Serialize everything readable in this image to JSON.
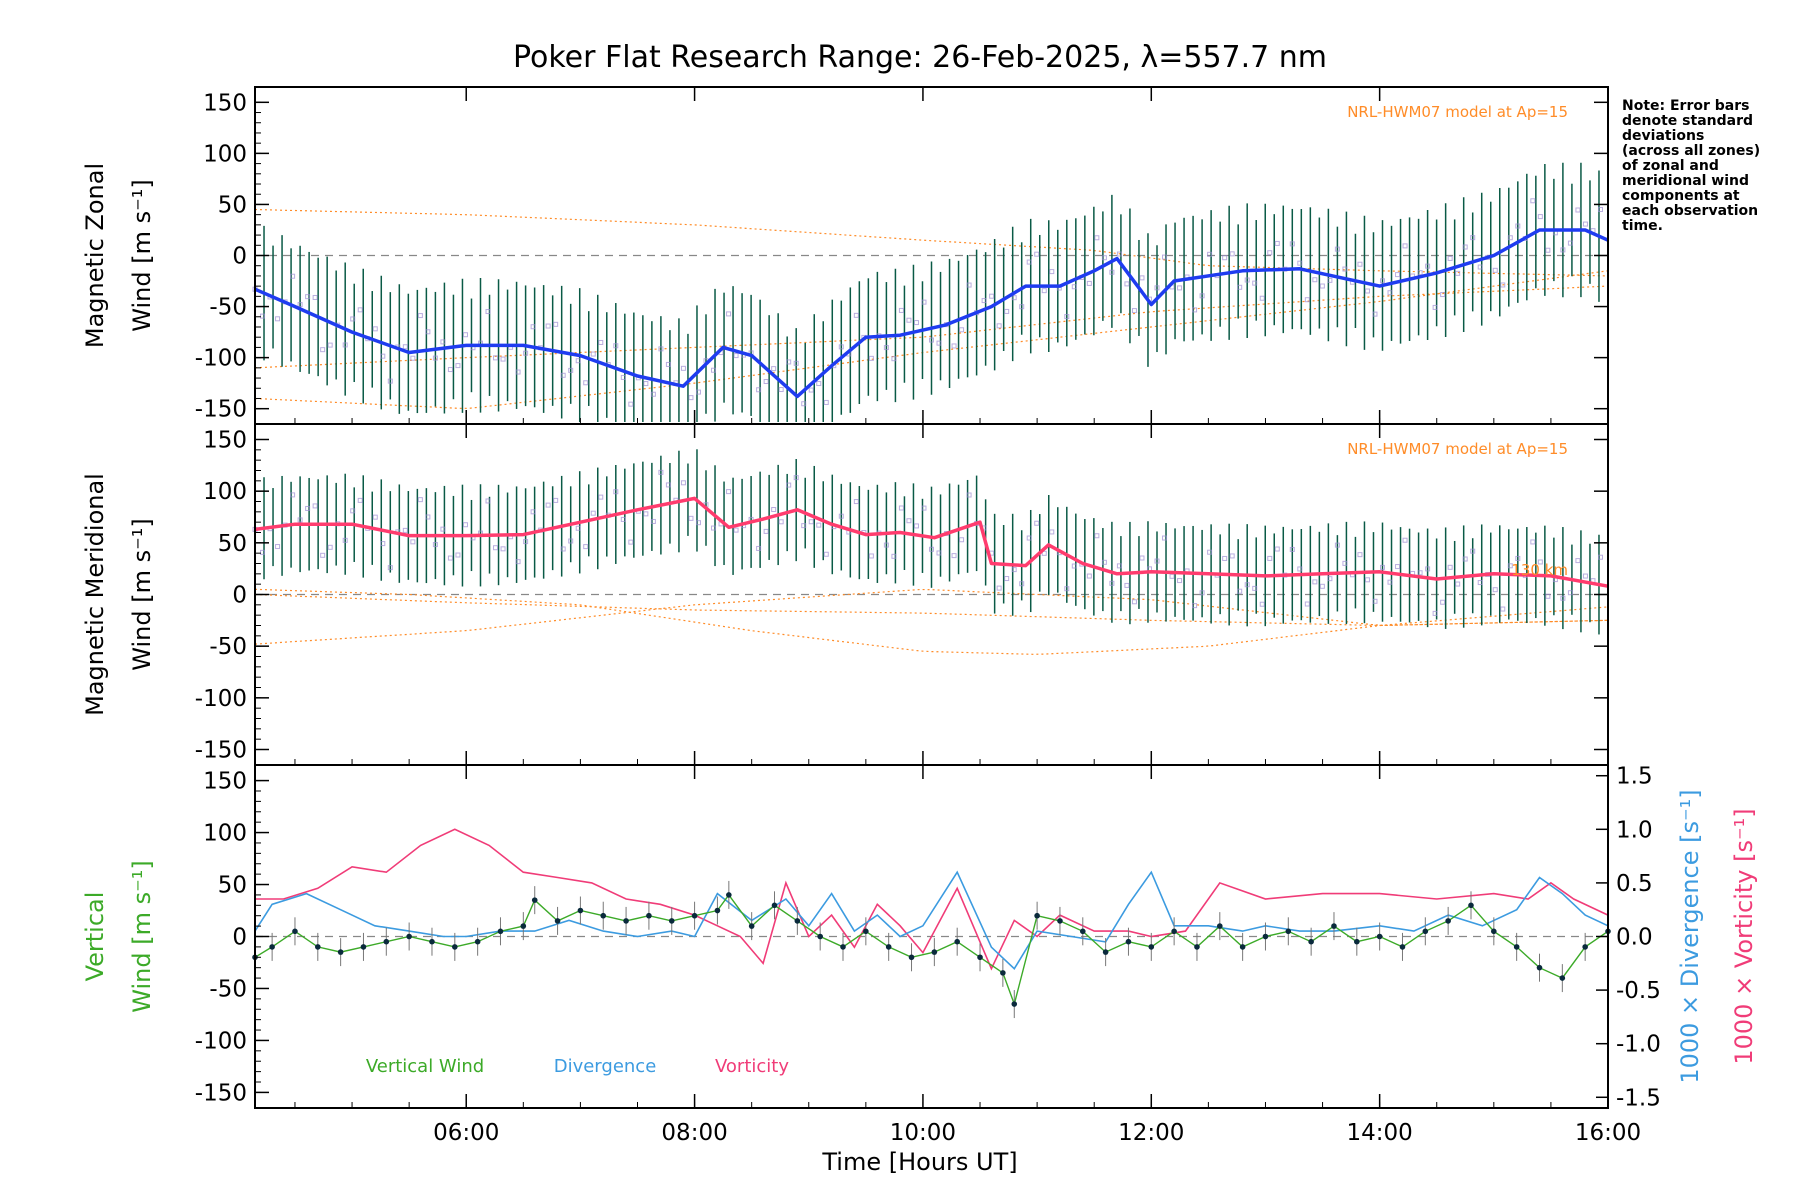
{
  "chart_data": {
    "title": "Poker Flat Research Range: 26-Feb-2025, λ=557.7 nm",
    "xlabel": "Time [Hours UT]",
    "x_ticks": [
      "06:00",
      "08:00",
      "10:00",
      "12:00",
      "14:00",
      "16:00"
    ],
    "x_tick_values": [
      6,
      8,
      10,
      12,
      14,
      16
    ],
    "xlim": [
      4.15,
      16.0
    ],
    "note_lines": [
      "Note: Error bars",
      "denote standard",
      "deviations",
      "(across all zones)",
      "of zonal and",
      "meridional wind",
      "components at",
      "each observation",
      "time."
    ],
    "colors": {
      "zonal": "#1f3cf0",
      "meridional": "#ff3c6e",
      "vertical": "#3caa28",
      "divergence": "#3c9be0",
      "vorticity": "#f03c78",
      "model": "#ff8c28",
      "errorbar": "#0a5a46",
      "vertical_point": "#0a2a3c",
      "scatter": "#9b8cd2"
    },
    "panels": [
      {
        "type": "line",
        "ylabel_line1": "Magnetic Zonal",
        "ylabel_line2": "Wind [m s⁻¹]",
        "ylim": [
          -165,
          165
        ],
        "y_ticks": [
          -150,
          -100,
          -50,
          0,
          50,
          100,
          150
        ],
        "model_label": "NRL-HWM07 model at Ap=15",
        "series": [
          {
            "name": "Zonal",
            "x": [
              4.15,
              4.5,
              5.0,
              5.5,
              6.0,
              6.5,
              7.0,
              7.5,
              7.9,
              8.25,
              8.5,
              8.9,
              9.2,
              9.5,
              9.8,
              10.2,
              10.6,
              10.9,
              11.2,
              11.5,
              11.7,
              12.0,
              12.2,
              12.8,
              13.3,
              14.0,
              14.5,
              15.0,
              15.4,
              15.8,
              16.0
            ],
            "y": [
              -33,
              -50,
              -75,
              -95,
              -88,
              -88,
              -98,
              -118,
              -128,
              -90,
              -98,
              -138,
              -108,
              -80,
              -78,
              -68,
              -50,
              -30,
              -30,
              -15,
              -3,
              -48,
              -25,
              -15,
              -13,
              -30,
              -17,
              0,
              25,
              25,
              15
            ]
          }
        ],
        "error_sd": 60,
        "model": [
          {
            "x": [
              4.15,
              6.0,
              8.0,
              10.0,
              11.5,
              12.5,
              14.0,
              16.0
            ],
            "y": [
              45,
              40,
              30,
              15,
              5,
              -10,
              -15,
              -20
            ]
          },
          {
            "x": [
              4.15,
              6.0,
              8.0,
              10.0,
              12.0,
              14.0,
              16.0
            ],
            "y": [
              -110,
              -100,
              -90,
              -80,
              -55,
              -40,
              -30
            ]
          },
          {
            "x": [
              4.15,
              6.0,
              8.0,
              10.0,
              12.0,
              14.0,
              16.0
            ],
            "y": [
              -140,
              -150,
              -125,
              -95,
              -70,
              -45,
              -15
            ]
          }
        ]
      },
      {
        "type": "line",
        "ylabel_line1": "Magnetic Meridional",
        "ylabel_line2": "Wind [m s⁻¹]",
        "ylim": [
          -165,
          165
        ],
        "y_ticks": [
          -150,
          -100,
          -50,
          0,
          50,
          100,
          150
        ],
        "model_label": "NRL-HWM07 model at Ap=15",
        "model_alt_label": "130 km",
        "series": [
          {
            "name": "Meridional",
            "x": [
              4.15,
              4.5,
              5.0,
              5.5,
              6.0,
              6.5,
              7.0,
              7.5,
              8.0,
              8.3,
              8.6,
              8.9,
              9.2,
              9.5,
              9.8,
              10.1,
              10.5,
              10.6,
              10.9,
              11.1,
              11.4,
              11.7,
              12.0,
              12.5,
              13.0,
              13.5,
              14.0,
              14.5,
              15.0,
              15.5,
              16.0
            ],
            "y": [
              63,
              68,
              68,
              57,
              57,
              58,
              70,
              82,
              93,
              65,
              73,
              82,
              68,
              58,
              60,
              55,
              70,
              30,
              28,
              48,
              30,
              20,
              22,
              20,
              18,
              20,
              22,
              15,
              20,
              18,
              8
            ]
          }
        ],
        "error_sd": 45,
        "model": [
          {
            "x": [
              4.15,
              6.0,
              8.0,
              10.0,
              12.0,
              14.0,
              16.0
            ],
            "y": [
              -48,
              -35,
              -10,
              5,
              -5,
              -30,
              -25
            ]
          },
          {
            "x": [
              4.15,
              5.5,
              7.0,
              8.5,
              10.0,
              11.0,
              12.5,
              14.0,
              16.0
            ],
            "y": [
              5,
              0,
              -10,
              -35,
              -55,
              -58,
              -50,
              -30,
              -12
            ]
          },
          {
            "x": [
              4.15,
              6.0,
              8.0,
              10.0,
              12.0,
              14.0,
              16.0
            ],
            "y": [
              0,
              -8,
              -15,
              -18,
              -25,
              -30,
              -25
            ]
          }
        ]
      },
      {
        "type": "line",
        "ylabel_line1": "Vertical",
        "ylabel_line2": "Wind [m s⁻¹]",
        "ylim": [
          -165,
          165
        ],
        "y_ticks": [
          -150,
          -100,
          -50,
          0,
          50,
          100,
          150
        ],
        "right_ylim": [
          -1.6,
          1.6
        ],
        "right_ticks": [
          "-1.5",
          "-1.0",
          "-0.5",
          "0.0",
          "0.5",
          "1.0",
          "1.5"
        ],
        "right_tick_values": [
          -1.5,
          -1.0,
          -0.5,
          0.0,
          0.5,
          1.0,
          1.5
        ],
        "right_label_div": "1000 × Divergence [s⁻¹]",
        "right_label_vort": "1000 × Vorticity [s⁻¹]",
        "legend": [
          "Vertical Wind",
          "Divergence",
          "Vorticity"
        ],
        "series": [
          {
            "name": "Vertical Wind",
            "x": [
              4.15,
              4.3,
              4.5,
              4.7,
              4.9,
              5.1,
              5.3,
              5.5,
              5.7,
              5.9,
              6.1,
              6.3,
              6.5,
              6.6,
              6.8,
              7.0,
              7.2,
              7.4,
              7.6,
              7.8,
              8.0,
              8.2,
              8.3,
              8.5,
              8.7,
              8.9,
              9.1,
              9.3,
              9.5,
              9.7,
              9.9,
              10.1,
              10.3,
              10.5,
              10.7,
              10.8,
              11.0,
              11.2,
              11.4,
              11.6,
              11.8,
              12.0,
              12.2,
              12.4,
              12.6,
              12.8,
              13.0,
              13.2,
              13.4,
              13.6,
              13.8,
              14.0,
              14.2,
              14.4,
              14.6,
              14.8,
              15.0,
              15.2,
              15.4,
              15.6,
              15.8,
              16.0
            ],
            "y": [
              -20,
              -10,
              5,
              -10,
              -15,
              -10,
              -5,
              0,
              -5,
              -10,
              -5,
              5,
              10,
              35,
              15,
              25,
              20,
              15,
              20,
              15,
              20,
              25,
              40,
              10,
              30,
              15,
              0,
              -10,
              5,
              -10,
              -20,
              -15,
              -5,
              -20,
              -35,
              -65,
              20,
              15,
              5,
              -15,
              -5,
              -10,
              5,
              -10,
              10,
              -10,
              0,
              5,
              -5,
              10,
              -5,
              0,
              -10,
              5,
              15,
              30,
              5,
              -10,
              -30,
              -40,
              -10,
              5
            ]
          },
          {
            "name": "Divergence",
            "x": [
              4.15,
              4.3,
              4.6,
              4.9,
              5.2,
              5.5,
              5.8,
              6.0,
              6.3,
              6.6,
              6.9,
              7.2,
              7.5,
              7.8,
              8.0,
              8.2,
              8.5,
              8.8,
              9.0,
              9.2,
              9.4,
              9.6,
              9.8,
              10.0,
              10.3,
              10.6,
              10.8,
              11.0,
              11.3,
              11.6,
              11.8,
              12.0,
              12.2,
              12.5,
              12.8,
              13.0,
              13.3,
              13.6,
              14.0,
              14.3,
              14.6,
              14.9,
              15.2,
              15.4,
              15.6,
              15.8,
              16.0
            ],
            "y": [
              0.05,
              0.3,
              0.4,
              0.25,
              0.1,
              0.05,
              0.0,
              0.0,
              0.05,
              0.05,
              0.15,
              0.05,
              0.0,
              0.05,
              0.0,
              0.4,
              0.15,
              0.35,
              0.1,
              0.4,
              0.05,
              0.2,
              0.0,
              0.1,
              0.6,
              -0.1,
              -0.3,
              0.05,
              0.0,
              -0.05,
              0.3,
              0.6,
              0.1,
              0.1,
              0.05,
              0.1,
              0.05,
              0.05,
              0.1,
              0.05,
              0.2,
              0.1,
              0.25,
              0.55,
              0.4,
              0.2,
              0.1
            ]
          },
          {
            "name": "Vorticity",
            "x": [
              4.15,
              4.4,
              4.7,
              5.0,
              5.3,
              5.6,
              5.9,
              6.2,
              6.5,
              6.8,
              7.1,
              7.4,
              7.7,
              8.0,
              8.2,
              8.4,
              8.6,
              8.8,
              9.0,
              9.2,
              9.4,
              9.6,
              9.8,
              10.0,
              10.3,
              10.6,
              10.8,
              11.0,
              11.2,
              11.5,
              11.8,
              12.0,
              12.3,
              12.6,
              13.0,
              13.5,
              14.0,
              14.5,
              15.0,
              15.3,
              15.5,
              15.7,
              16.0
            ],
            "y": [
              0.35,
              0.35,
              0.45,
              0.65,
              0.6,
              0.85,
              1.0,
              0.85,
              0.6,
              0.55,
              0.5,
              0.35,
              0.3,
              0.2,
              0.1,
              0.0,
              -0.25,
              0.5,
              0.0,
              0.2,
              -0.1,
              0.3,
              0.1,
              -0.15,
              0.45,
              -0.3,
              0.15,
              0.0,
              0.2,
              0.05,
              0.05,
              0.0,
              0.05,
              0.5,
              0.35,
              0.4,
              0.4,
              0.35,
              0.4,
              0.35,
              0.5,
              0.35,
              0.2
            ]
          }
        ]
      }
    ]
  }
}
